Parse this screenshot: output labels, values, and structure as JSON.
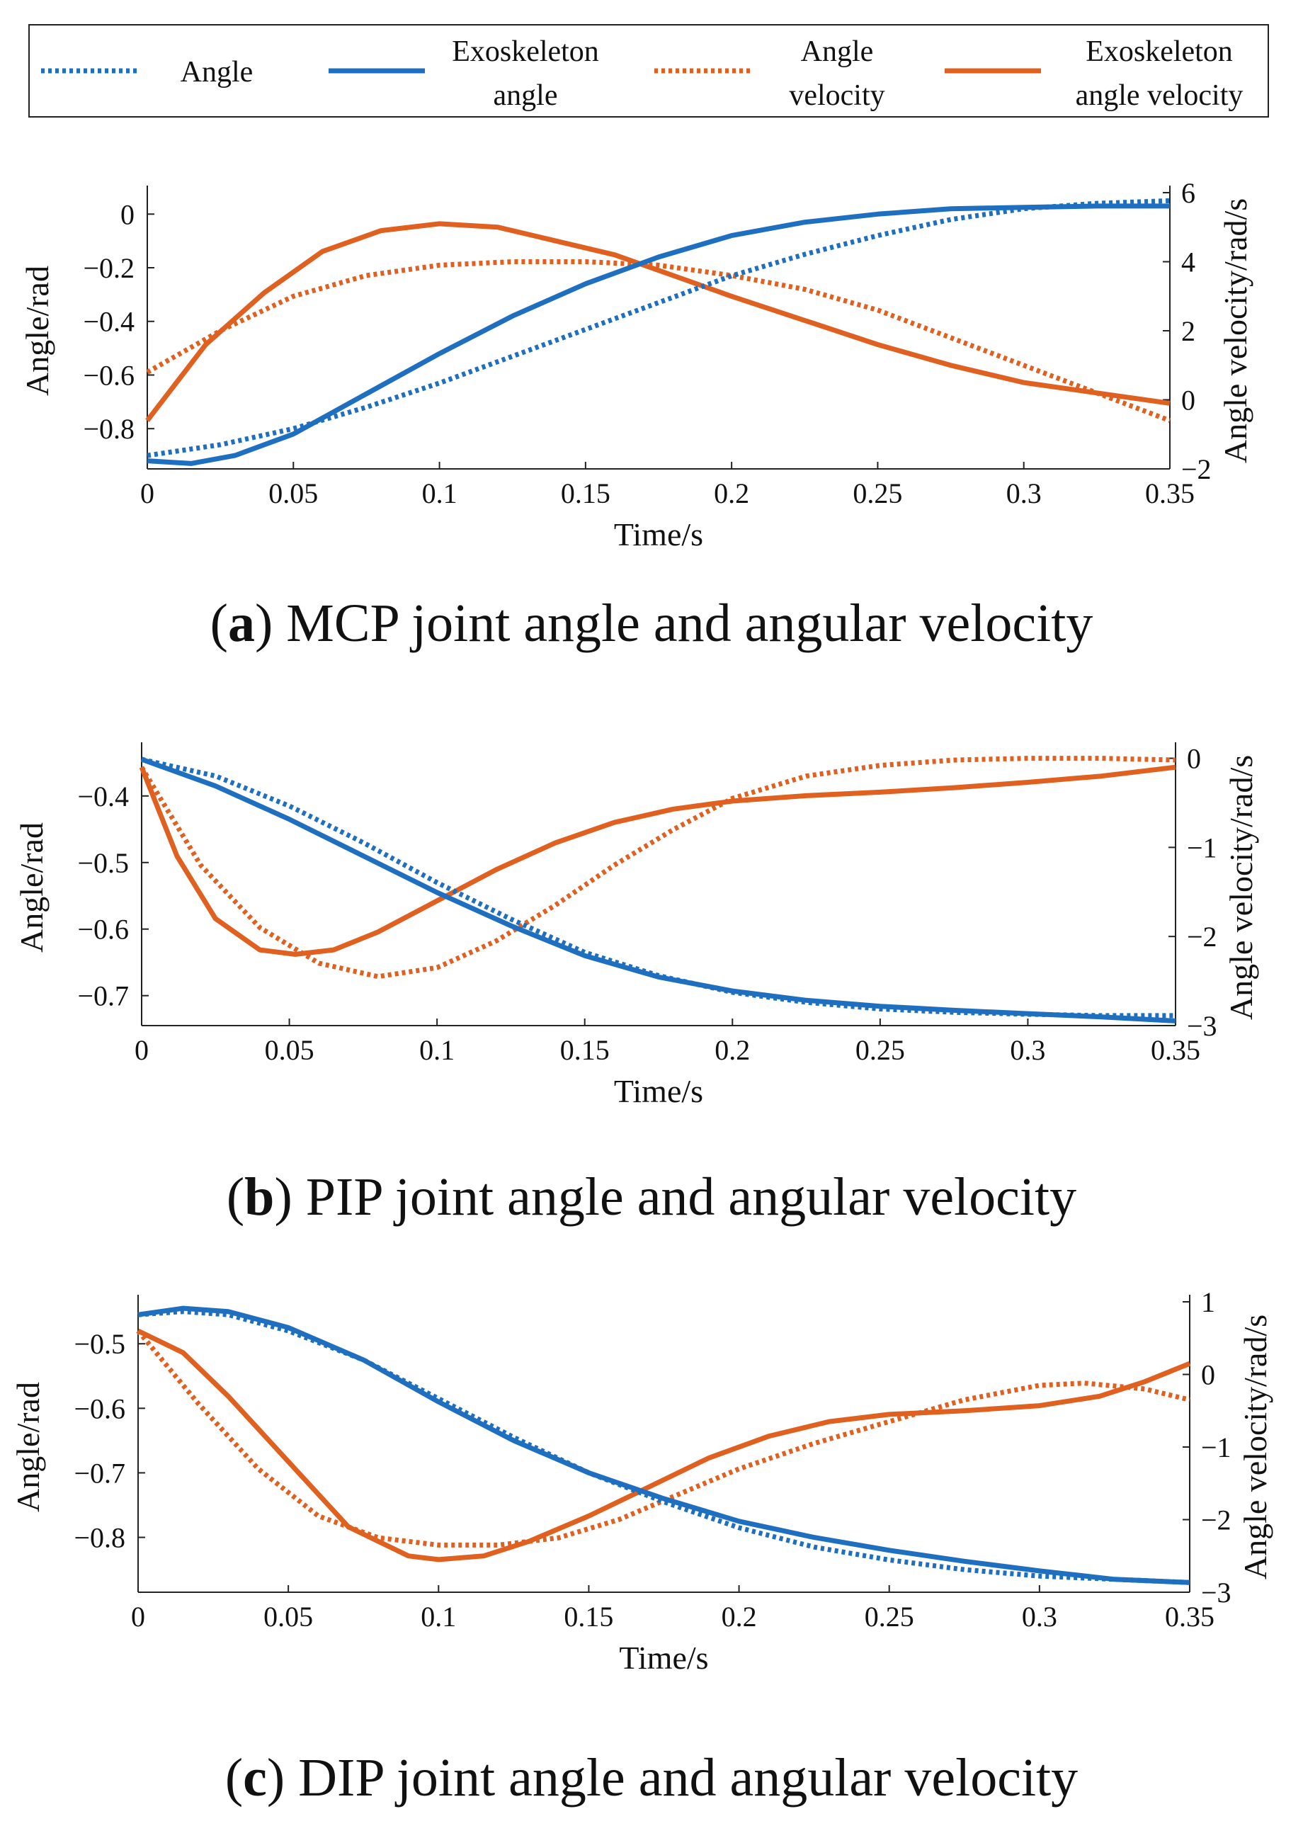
{
  "legend": [
    {
      "label_line1": "Angle",
      "label_line2": "",
      "color": "#1f6fc1",
      "style": "dotted"
    },
    {
      "label_line1": "Exoskeleton",
      "label_line2": "angle",
      "color": "#1f6fc1",
      "style": "solid"
    },
    {
      "label_line1": "Angle",
      "label_line2": "velocity",
      "color": "#e06020",
      "style": "dotted"
    },
    {
      "label_line1": "Exoskeleton",
      "label_line2": "angle velocity",
      "color": "#e06020",
      "style": "solid"
    }
  ],
  "panels": [
    {
      "caption_letter": "a",
      "caption_text": " MCP joint angle and angular velocity"
    },
    {
      "caption_letter": "b",
      "caption_text": " PIP joint angle and angular velocity"
    },
    {
      "caption_letter": "c",
      "caption_text": " DIP joint angle and angular velocity"
    }
  ],
  "chart_data": [
    {
      "type": "line",
      "xlabel": "Time/s",
      "ylabel": "Angle/rad",
      "y2label": "Angle velocity/rad/s",
      "xlim": [
        0,
        0.35
      ],
      "ylim": [
        -0.95,
        0.08
      ],
      "y2lim": [
        -2,
        6
      ],
      "xticks": [
        0,
        0.05,
        0.1,
        0.15,
        0.2,
        0.25,
        0.3,
        0.35
      ],
      "xtick_labels": [
        "0",
        "0.05",
        "0.1",
        "0.15",
        "0.2",
        "0.25",
        "0.3",
        "0.35"
      ],
      "yticks": [
        -0.8,
        -0.6,
        -0.4,
        -0.2,
        0
      ],
      "ytick_labels": [
        "−0.8",
        "−0.6",
        "−0.4",
        "−0.2",
        "0"
      ],
      "y2ticks": [
        -2,
        0,
        2,
        4,
        6
      ],
      "y2tick_labels": [
        "−2",
        "0",
        "2",
        "4",
        "6"
      ],
      "series": [
        {
          "name": "Angle",
          "axis": "left",
          "style": "dotted",
          "color": "#1f6fc1",
          "x": [
            0,
            0.025,
            0.05,
            0.075,
            0.1,
            0.125,
            0.15,
            0.175,
            0.2,
            0.225,
            0.25,
            0.275,
            0.3,
            0.325,
            0.35
          ],
          "y": [
            -0.9,
            -0.86,
            -0.8,
            -0.72,
            -0.63,
            -0.53,
            -0.43,
            -0.33,
            -0.23,
            -0.15,
            -0.08,
            -0.02,
            0.02,
            0.04,
            0.05
          ]
        },
        {
          "name": "Exoskeleton angle",
          "axis": "left",
          "style": "solid",
          "color": "#1f6fc1",
          "x": [
            0,
            0.015,
            0.03,
            0.05,
            0.075,
            0.1,
            0.125,
            0.15,
            0.175,
            0.2,
            0.225,
            0.25,
            0.275,
            0.3,
            0.325,
            0.35
          ],
          "y": [
            -0.92,
            -0.93,
            -0.9,
            -0.82,
            -0.67,
            -0.52,
            -0.38,
            -0.26,
            -0.16,
            -0.08,
            -0.03,
            0.0,
            0.02,
            0.025,
            0.03,
            0.03
          ]
        },
        {
          "name": "Angle velocity",
          "axis": "right",
          "style": "dotted",
          "color": "#e06020",
          "x": [
            0,
            0.025,
            0.05,
            0.075,
            0.1,
            0.125,
            0.15,
            0.175,
            0.2,
            0.225,
            0.25,
            0.275,
            0.3,
            0.325,
            0.35
          ],
          "y": [
            0.8,
            2.0,
            3.0,
            3.6,
            3.9,
            4.0,
            4.0,
            3.9,
            3.6,
            3.2,
            2.6,
            1.8,
            1.0,
            0.2,
            -0.6
          ]
        },
        {
          "name": "Exoskeleton angle velocity",
          "axis": "right",
          "style": "solid",
          "color": "#e06020",
          "x": [
            0,
            0.02,
            0.04,
            0.06,
            0.08,
            0.1,
            0.12,
            0.14,
            0.16,
            0.18,
            0.2,
            0.225,
            0.25,
            0.275,
            0.3,
            0.325,
            0.35
          ],
          "y": [
            -0.6,
            1.6,
            3.1,
            4.3,
            4.9,
            5.1,
            5.0,
            4.6,
            4.2,
            3.6,
            3.0,
            2.3,
            1.6,
            1.0,
            0.5,
            0.2,
            -0.1
          ]
        }
      ]
    },
    {
      "type": "line",
      "xlabel": "Time/s",
      "ylabel": "Angle/rad",
      "y2label": "Angle velocity/rad/s",
      "xlim": [
        0,
        0.35
      ],
      "ylim": [
        -0.745,
        -0.33
      ],
      "y2lim": [
        -3,
        0.1
      ],
      "xticks": [
        0,
        0.05,
        0.1,
        0.15,
        0.2,
        0.25,
        0.3,
        0.35
      ],
      "xtick_labels": [
        "0",
        "0.05",
        "0.1",
        "0.15",
        "0.2",
        "0.25",
        "0.3",
        "0.35"
      ],
      "yticks": [
        -0.7,
        -0.6,
        -0.5,
        -0.4
      ],
      "ytick_labels": [
        "−0.7",
        "−0.6",
        "−0.5",
        "−0.4"
      ],
      "y2ticks": [
        -3,
        -2,
        -1,
        0
      ],
      "y2tick_labels": [
        "−3",
        "−2",
        "−1",
        "0"
      ],
      "series": [
        {
          "name": "Angle",
          "axis": "left",
          "style": "dotted",
          "color": "#1f6fc1",
          "x": [
            0,
            0.025,
            0.05,
            0.075,
            0.1,
            0.125,
            0.15,
            0.175,
            0.2,
            0.225,
            0.25,
            0.275,
            0.3,
            0.325,
            0.35
          ],
          "y": [
            -0.345,
            -0.37,
            -0.415,
            -0.47,
            -0.53,
            -0.585,
            -0.635,
            -0.67,
            -0.695,
            -0.71,
            -0.72,
            -0.725,
            -0.728,
            -0.73,
            -0.73
          ]
        },
        {
          "name": "Exoskeleton angle",
          "axis": "left",
          "style": "solid",
          "color": "#1f6fc1",
          "x": [
            0,
            0.025,
            0.05,
            0.075,
            0.1,
            0.125,
            0.15,
            0.175,
            0.2,
            0.225,
            0.25,
            0.275,
            0.3,
            0.325,
            0.35
          ],
          "y": [
            -0.345,
            -0.385,
            -0.435,
            -0.49,
            -0.545,
            -0.595,
            -0.64,
            -0.672,
            -0.693,
            -0.707,
            -0.716,
            -0.722,
            -0.727,
            -0.732,
            -0.738
          ]
        },
        {
          "name": "Angle velocity",
          "axis": "right",
          "style": "dotted",
          "color": "#e06020",
          "x": [
            0,
            0.02,
            0.04,
            0.06,
            0.08,
            0.1,
            0.12,
            0.14,
            0.16,
            0.18,
            0.2,
            0.225,
            0.25,
            0.275,
            0.3,
            0.325,
            0.35
          ],
          "y": [
            -0.1,
            -1.2,
            -1.9,
            -2.3,
            -2.45,
            -2.35,
            -2.05,
            -1.65,
            -1.2,
            -0.8,
            -0.45,
            -0.2,
            -0.08,
            -0.02,
            0.0,
            0.0,
            -0.02
          ]
        },
        {
          "name": "Exoskeleton angle velocity",
          "axis": "right",
          "style": "solid",
          "color": "#e06020",
          "x": [
            0,
            0.012,
            0.025,
            0.04,
            0.052,
            0.065,
            0.08,
            0.1,
            0.12,
            0.14,
            0.16,
            0.18,
            0.2,
            0.225,
            0.25,
            0.275,
            0.3,
            0.325,
            0.35
          ],
          "y": [
            -0.1,
            -1.1,
            -1.8,
            -2.15,
            -2.2,
            -2.15,
            -1.95,
            -1.6,
            -1.25,
            -0.95,
            -0.72,
            -0.57,
            -0.48,
            -0.42,
            -0.38,
            -0.33,
            -0.27,
            -0.2,
            -0.1
          ]
        }
      ]
    },
    {
      "type": "line",
      "xlabel": "Time/s",
      "ylabel": "Angle/rad",
      "y2label": "Angle velocity/rad/s",
      "xlim": [
        0,
        0.35
      ],
      "ylim": [
        -0.885,
        -0.435
      ],
      "y2lim": [
        -3,
        1
      ],
      "xticks": [
        0,
        0.05,
        0.1,
        0.15,
        0.2,
        0.25,
        0.3,
        0.35
      ],
      "xtick_labels": [
        "0",
        "0.05",
        "0.1",
        "0.15",
        "0.2",
        "0.25",
        "0.3",
        "0.35"
      ],
      "yticks": [
        -0.8,
        -0.7,
        -0.6,
        -0.5
      ],
      "ytick_labels": [
        "−0.8",
        "−0.7",
        "−0.6",
        "−0.5"
      ],
      "y2ticks": [
        -3,
        -2,
        -1,
        0,
        1
      ],
      "y2tick_labels": [
        "−3",
        "−2",
        "−1",
        "0",
        "1"
      ],
      "series": [
        {
          "name": "Angle",
          "axis": "left",
          "style": "dotted",
          "color": "#1f6fc1",
          "x": [
            0,
            0.015,
            0.03,
            0.05,
            0.075,
            0.1,
            0.125,
            0.15,
            0.175,
            0.2,
            0.225,
            0.25,
            0.275,
            0.3,
            0.325,
            0.35
          ],
          "y": [
            -0.455,
            -0.45,
            -0.455,
            -0.48,
            -0.525,
            -0.585,
            -0.645,
            -0.7,
            -0.745,
            -0.785,
            -0.815,
            -0.835,
            -0.85,
            -0.86,
            -0.865,
            -0.87
          ]
        },
        {
          "name": "Exoskeleton angle",
          "axis": "left",
          "style": "solid",
          "color": "#1f6fc1",
          "x": [
            0,
            0.015,
            0.03,
            0.05,
            0.075,
            0.1,
            0.125,
            0.15,
            0.175,
            0.2,
            0.225,
            0.25,
            0.275,
            0.3,
            0.325,
            0.35
          ],
          "y": [
            -0.455,
            -0.445,
            -0.45,
            -0.475,
            -0.525,
            -0.59,
            -0.65,
            -0.7,
            -0.74,
            -0.775,
            -0.8,
            -0.82,
            -0.837,
            -0.852,
            -0.865,
            -0.87
          ]
        },
        {
          "name": "Angle velocity",
          "axis": "right",
          "style": "dotted",
          "color": "#e06020",
          "x": [
            0,
            0.02,
            0.04,
            0.06,
            0.08,
            0.1,
            0.12,
            0.14,
            0.16,
            0.18,
            0.2,
            0.225,
            0.25,
            0.275,
            0.3,
            0.315,
            0.335,
            0.35
          ],
          "y": [
            0.6,
            -0.4,
            -1.3,
            -1.95,
            -2.25,
            -2.35,
            -2.35,
            -2.25,
            -2.0,
            -1.65,
            -1.3,
            -0.95,
            -0.65,
            -0.35,
            -0.15,
            -0.12,
            -0.2,
            -0.35
          ]
        },
        {
          "name": "Exoskeleton angle velocity",
          "axis": "right",
          "style": "solid",
          "color": "#e06020",
          "x": [
            0,
            0.015,
            0.03,
            0.05,
            0.07,
            0.09,
            0.1,
            0.115,
            0.13,
            0.15,
            0.17,
            0.19,
            0.21,
            0.23,
            0.25,
            0.275,
            0.3,
            0.32,
            0.335,
            0.35
          ],
          "y": [
            0.6,
            0.3,
            -0.3,
            -1.2,
            -2.1,
            -2.5,
            -2.55,
            -2.5,
            -2.3,
            -1.95,
            -1.55,
            -1.15,
            -0.85,
            -0.65,
            -0.55,
            -0.5,
            -0.43,
            -0.3,
            -0.1,
            0.15
          ]
        }
      ]
    }
  ]
}
